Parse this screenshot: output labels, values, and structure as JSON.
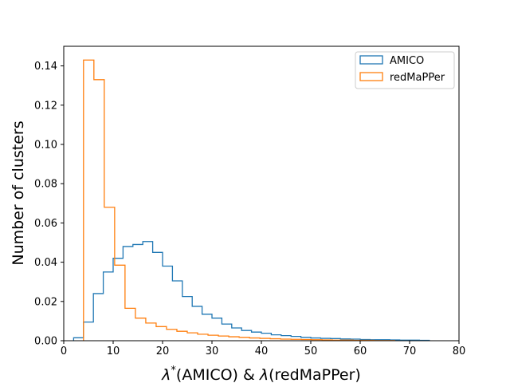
{
  "chart_data": {
    "type": "histogram",
    "title": "",
    "xlabel": "λ*(AMICO) & λ(redMaPPer)",
    "ylabel": "Number of clusters",
    "xlim": [
      0,
      80
    ],
    "ylim": [
      0,
      0.15
    ],
    "xticks": [
      0,
      10,
      20,
      30,
      40,
      50,
      60,
      70,
      80
    ],
    "xtick_labels": [
      "0",
      "10",
      "20",
      "30",
      "40",
      "50",
      "60",
      "70",
      "80"
    ],
    "yticks": [
      0.0,
      0.02,
      0.04,
      0.06,
      0.08,
      0.1,
      0.12,
      0.14
    ],
    "ytick_labels": [
      "0.00",
      "0.02",
      "0.04",
      "0.06",
      "0.08",
      "0.10",
      "0.12",
      "0.14"
    ],
    "grid": false,
    "legend_position": "top-right",
    "series": [
      {
        "name": "AMICO",
        "color": "#1f77b4",
        "bin_edges": [
          2,
          4,
          6,
          8,
          10,
          12,
          14,
          16,
          18,
          20,
          22,
          24,
          26,
          28,
          30,
          32,
          34,
          36,
          38,
          40,
          42,
          44,
          46,
          48,
          50,
          52,
          54,
          56,
          58,
          60,
          62,
          64,
          66,
          68,
          70,
          72,
          74
        ],
        "values": [
          0.0015,
          0.0095,
          0.024,
          0.035,
          0.042,
          0.048,
          0.049,
          0.0505,
          0.045,
          0.038,
          0.0305,
          0.0225,
          0.0175,
          0.0135,
          0.0115,
          0.0085,
          0.0065,
          0.0052,
          0.0044,
          0.0038,
          0.003,
          0.0026,
          0.0022,
          0.0017,
          0.0014,
          0.0012,
          0.0011,
          0.0009,
          0.0008,
          0.0006,
          0.0005,
          0.0005,
          0.0004,
          0.0003,
          0.0003,
          0.0002
        ]
      },
      {
        "name": "redMaPPer",
        "color": "#ff7f0e",
        "bin_edges": [
          4,
          6.1,
          8.2,
          10.3,
          12.4,
          14.5,
          16.6,
          18.7,
          20.8,
          22.9,
          25,
          27.1,
          29.2,
          31.3,
          33.4,
          35.5,
          37.6,
          39.7,
          41.8,
          43.9,
          46,
          48.1,
          50.2,
          52.3,
          54.4,
          56.5,
          58.6,
          60.7,
          62.8,
          64.9,
          67
        ],
        "values": [
          0.143,
          0.133,
          0.068,
          0.0385,
          0.0165,
          0.0115,
          0.009,
          0.0072,
          0.0058,
          0.0048,
          0.004,
          0.0033,
          0.0028,
          0.0024,
          0.002,
          0.0017,
          0.0014,
          0.0012,
          0.001,
          0.0008,
          0.0007,
          0.0006,
          0.0005,
          0.0004,
          0.0003,
          0.0003,
          0.0002,
          0.0002,
          0.0001,
          0.0001
        ]
      }
    ]
  }
}
